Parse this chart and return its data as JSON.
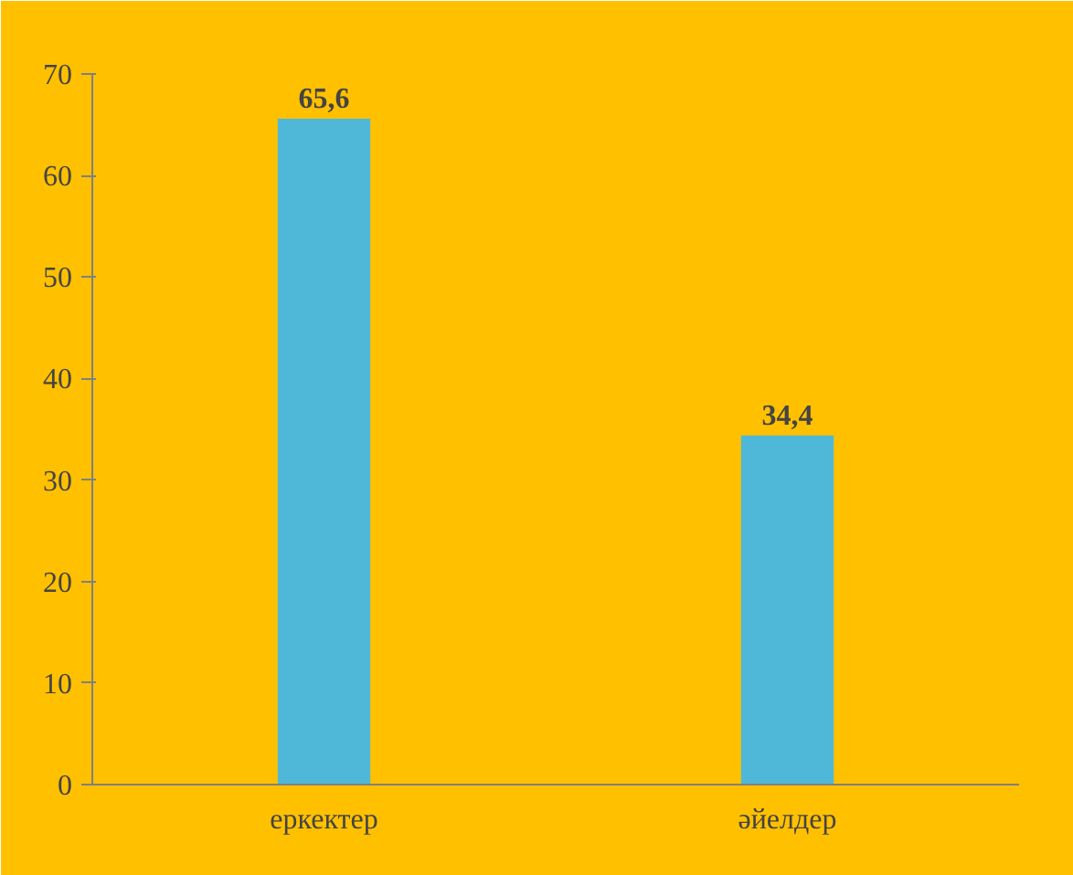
{
  "chart_data": {
    "type": "bar",
    "categories": [
      "еркектер",
      "әйелдер"
    ],
    "values": [
      65.6,
      34.4
    ],
    "value_labels": [
      "65,6",
      "34,4"
    ],
    "color": "#4fb8d8",
    "ylim": [
      0,
      70
    ],
    "yticks": [
      0,
      10,
      20,
      30,
      40,
      50,
      60,
      70
    ],
    "grid": false
  }
}
